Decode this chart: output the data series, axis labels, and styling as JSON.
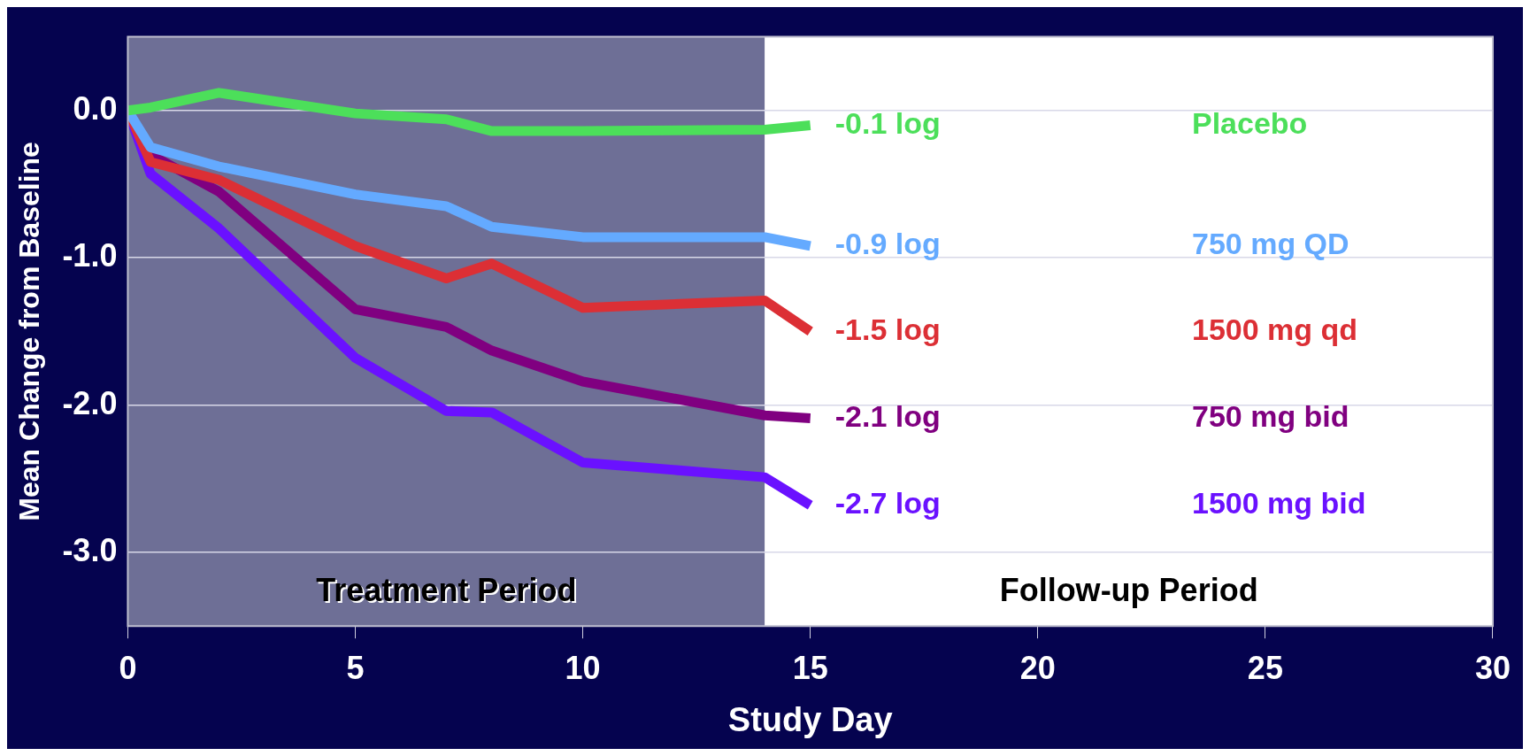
{
  "chart_data": {
    "type": "line",
    "xlabel": "Study Day",
    "ylabel": "Mean Change from Baseline",
    "xlim": [
      0,
      30
    ],
    "xticks": [
      0,
      5,
      10,
      15,
      20,
      25,
      30
    ],
    "ylim": [
      -3.5,
      0.5
    ],
    "yticks": [
      {
        "value": 0,
        "label": "0.0"
      },
      {
        "value": -1,
        "label": "-1.0"
      },
      {
        "value": -2,
        "label": "-2.0"
      },
      {
        "value": -3,
        "label": "-3.0"
      }
    ],
    "grid": "y",
    "legend": false,
    "line_style": "solid",
    "marker": "none",
    "x": [
      0,
      0.5,
      2,
      5,
      7,
      8,
      10,
      14,
      15
    ],
    "series": [
      {
        "name": "Placebo",
        "color": "#4cdf5a",
        "values": [
          0,
          0.02,
          0.12,
          -0.02,
          -0.06,
          -0.14,
          -0.14,
          -0.13,
          -0.1
        ]
      },
      {
        "name": "750 mg QD",
        "color": "#64aaff",
        "values": [
          0,
          -0.25,
          -0.38,
          -0.57,
          -0.65,
          -0.79,
          -0.86,
          -0.86,
          -0.92
        ]
      },
      {
        "name": "1500 mg qd",
        "color": "#dc2f35",
        "values": [
          0,
          -0.35,
          -0.47,
          -0.92,
          -1.14,
          -1.04,
          -1.34,
          -1.29,
          -1.5
        ]
      },
      {
        "name": "750 mg bid",
        "color": "#800080",
        "values": [
          0,
          -0.3,
          -0.55,
          -1.35,
          -1.47,
          -1.63,
          -1.84,
          -2.07,
          -2.09
        ]
      },
      {
        "name": "1500 mg bid",
        "color": "#6a11ff",
        "values": [
          0,
          -0.43,
          -0.8,
          -1.68,
          -2.04,
          -2.05,
          -2.39,
          -2.49,
          -2.68
        ]
      }
    ],
    "bands": [
      {
        "axis": "x",
        "from": 0,
        "to": 14,
        "label": "Treatment Period",
        "color": "#6e6f96"
      },
      {
        "axis": "x",
        "from": 14,
        "to": 30,
        "label": "Follow-up Period",
        "color": "#ffffff"
      }
    ],
    "annotations": [
      "-0.1 log",
      "-0.9 log",
      "-1.5 log",
      "-2.1 log",
      "-2.7 log"
    ]
  }
}
